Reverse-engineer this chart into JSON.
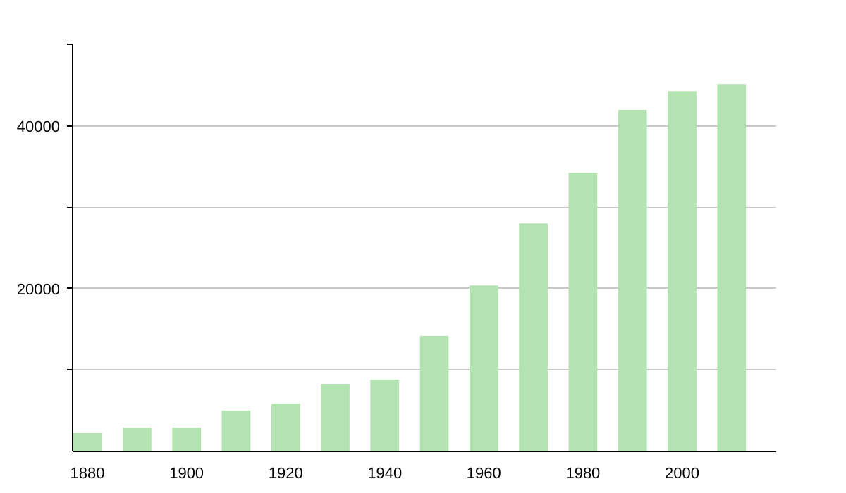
{
  "chart_data": {
    "type": "bar",
    "x": [
      1880,
      1890,
      1900,
      1910,
      1920,
      1930,
      1940,
      1950,
      1960,
      1970,
      1980,
      1990,
      2000,
      2010
    ],
    "values": [
      2250,
      2940,
      2940,
      5010,
      5880,
      8300,
      8820,
      14180,
      20400,
      28010,
      34240,
      41960,
      44270,
      45130
    ],
    "color": "#b3e3b0",
    "xlim": [
      1877,
      2019
    ],
    "xticks": [
      1880,
      1900,
      1920,
      1940,
      1960,
      1980,
      2000
    ],
    "ylim": [
      0,
      50000
    ],
    "yticks": [
      {
        "value": 10000,
        "label": null
      },
      20000,
      {
        "value": 30000,
        "label": null
      },
      40000,
      {
        "value": 50000,
        "label": null
      }
    ],
    "grid": "y"
  }
}
